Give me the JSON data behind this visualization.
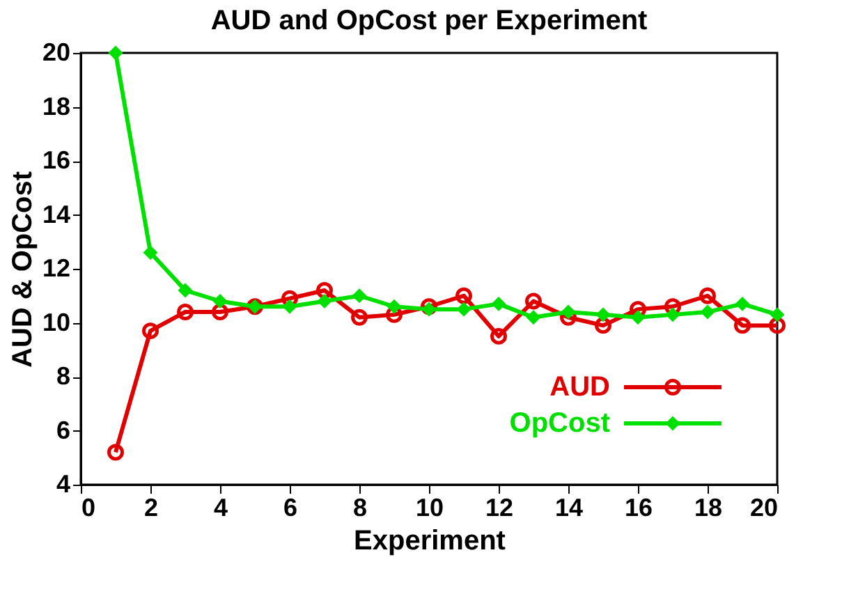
{
  "chart_data": {
    "type": "line",
    "title": "AUD and OpCost per Experiment",
    "xlabel": "Experiment",
    "ylabel": "AUD & OpCost",
    "x": [
      1,
      2,
      3,
      4,
      5,
      6,
      7,
      8,
      9,
      10,
      11,
      12,
      13,
      14,
      15,
      16,
      17,
      18,
      19,
      20
    ],
    "series": [
      {
        "name": "AUD",
        "color": "#e00000",
        "marker": "circle",
        "values": [
          5.2,
          9.7,
          10.4,
          10.4,
          10.6,
          10.9,
          11.2,
          10.2,
          10.3,
          10.6,
          11.0,
          9.5,
          10.8,
          10.2,
          9.9,
          10.5,
          10.6,
          11.0,
          9.9,
          9.9
        ]
      },
      {
        "name": "OpCost",
        "color": "#00e000",
        "marker": "diamond",
        "values": [
          20,
          12.6,
          11.2,
          10.8,
          10.6,
          10.6,
          10.8,
          11.0,
          10.6,
          10.5,
          10.5,
          10.7,
          10.2,
          10.4,
          10.3,
          10.2,
          10.3,
          10.4,
          10.7,
          10.3
        ]
      }
    ],
    "xlim": [
      0,
      20
    ],
    "xticks": [
      0,
      2,
      4,
      6,
      8,
      10,
      12,
      14,
      16,
      18,
      20
    ],
    "ylim": [
      4,
      20
    ],
    "yticks": [
      4,
      6,
      8,
      10,
      12,
      14,
      16,
      18,
      20
    ],
    "grid": false,
    "legend": "bottom right"
  }
}
